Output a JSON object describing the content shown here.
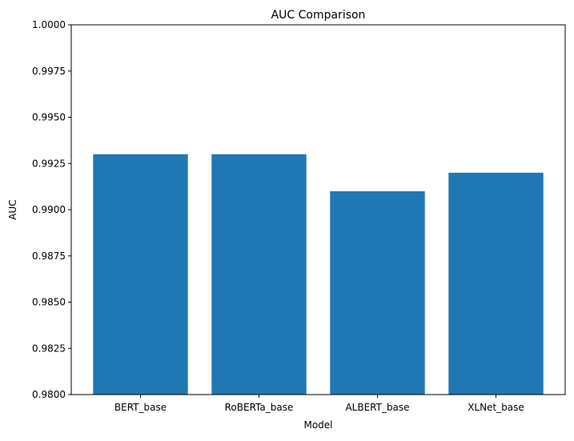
{
  "chart_data": {
    "type": "bar",
    "title": "AUC Comparison",
    "xlabel": "Model",
    "ylabel": "AUC",
    "categories": [
      "BERT_base",
      "RoBERTa_base",
      "ALBERT_base",
      "XLNet_base"
    ],
    "values": [
      0.993,
      0.993,
      0.991,
      0.992
    ],
    "ylim": [
      0.98,
      1.0
    ],
    "yticks": [
      0.98,
      0.9825,
      0.985,
      0.9875,
      0.99,
      0.9925,
      0.995,
      0.9975,
      1.0
    ],
    "ytick_labels": [
      "0.9800",
      "0.9825",
      "0.9850",
      "0.9875",
      "0.9900",
      "0.9925",
      "0.9950",
      "0.9975",
      "1.0000"
    ],
    "grid": false,
    "legend": "none",
    "bar_color": "#1f77b4"
  }
}
